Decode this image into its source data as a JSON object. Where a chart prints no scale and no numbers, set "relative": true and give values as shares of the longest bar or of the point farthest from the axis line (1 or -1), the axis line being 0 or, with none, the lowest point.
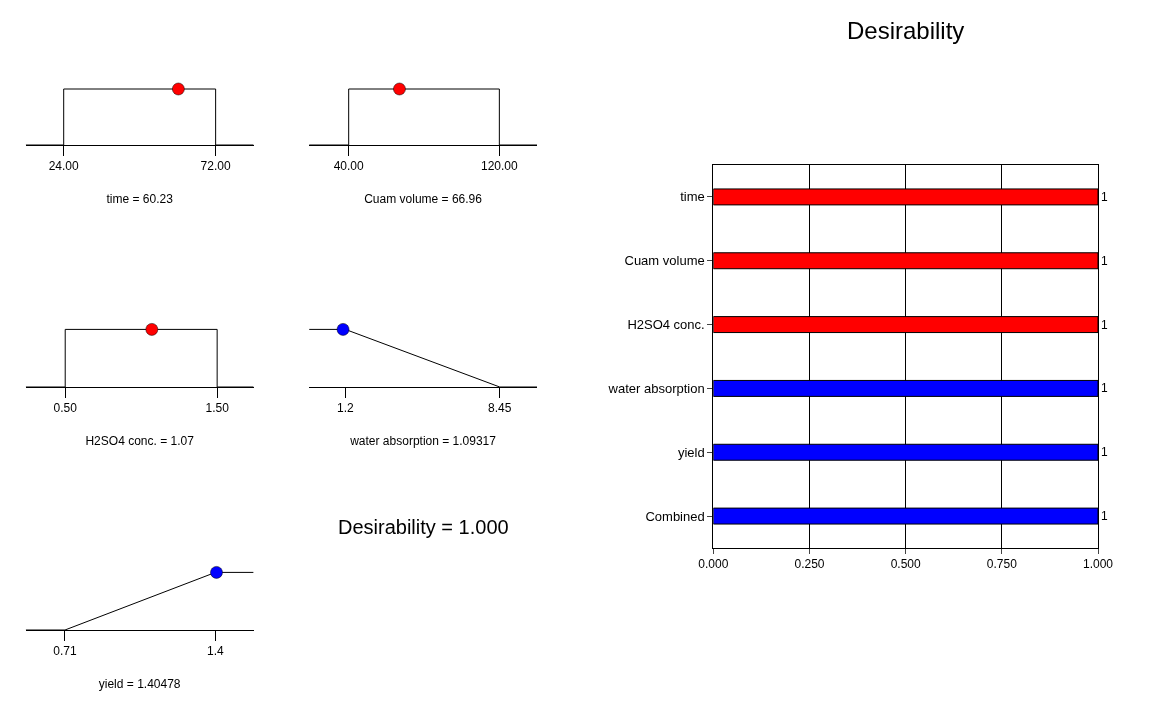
{
  "chart_data": [
    {
      "type": "line",
      "xlabel": "time = 60.23",
      "x": [
        12,
        24,
        24,
        72,
        72,
        84
      ],
      "relative": true,
      "xlim": [
        12,
        84
      ],
      "xticks": [
        {
          "value": 24,
          "label": "24.00"
        },
        {
          "value": 72,
          "label": "72.00"
        }
      ],
      "tick_labels": "x",
      "series": [
        {
          "color": "#000000",
          "values": [
            0,
            0,
            1,
            1,
            0,
            0
          ],
          "marker": "none"
        },
        {
          "type": "scatter",
          "x": [
            60.23
          ],
          "values": [
            1
          ],
          "color": "#ff0000",
          "marker": "circle"
        }
      ]
    },
    {
      "type": "line",
      "xlabel": "Cuam volume = 66.96",
      "x": [
        19,
        40,
        40,
        120,
        120,
        140
      ],
      "relative": true,
      "xlim": [
        19,
        140
      ],
      "xticks": [
        {
          "value": 40,
          "label": "40.00"
        },
        {
          "value": 120,
          "label": "120.00"
        }
      ],
      "tick_labels": "x",
      "series": [
        {
          "color": "#000000",
          "values": [
            0,
            0,
            1,
            1,
            0,
            0
          ],
          "marker": "none"
        },
        {
          "type": "scatter",
          "x": [
            66.96
          ],
          "values": [
            1
          ],
          "color": "#ff0000",
          "marker": "circle"
        }
      ]
    },
    {
      "type": "line",
      "xlabel": "H2SO4 conc. = 1.07",
      "x": [
        0.24,
        0.5,
        0.5,
        1.5,
        1.5,
        1.74
      ],
      "relative": true,
      "xlim": [
        0.24,
        1.74
      ],
      "xticks": [
        {
          "value": 0.5,
          "label": "0.50"
        },
        {
          "value": 1.5,
          "label": "1.50"
        }
      ],
      "tick_labels": "x",
      "series": [
        {
          "color": "#000000",
          "values": [
            0,
            0,
            1,
            1,
            0,
            0
          ],
          "marker": "none"
        },
        {
          "type": "scatter",
          "x": [
            1.07
          ],
          "values": [
            1
          ],
          "color": "#ff0000",
          "marker": "circle"
        }
      ]
    },
    {
      "type": "line",
      "xlabel": "water absorption = 1.09317",
      "x": [
        -0.5,
        1.2,
        8.45,
        10.2
      ],
      "relative": true,
      "xlim": [
        -0.5,
        10.2
      ],
      "xticks": [
        1.2,
        8.45
      ],
      "tick_labels": "x",
      "series": [
        {
          "color": "#000000",
          "values": [
            1,
            1,
            0,
            0
          ],
          "marker": "none"
        },
        {
          "type": "scatter",
          "x": [
            1.09317
          ],
          "values": [
            1
          ],
          "color": "#0000ff",
          "marker": "circle"
        }
      ]
    },
    {
      "type": "line",
      "xlabel": "yield = 1.40478",
      "x": [
        0.53,
        0.71,
        1.4,
        1.575
      ],
      "relative": true,
      "xlim": [
        0.53,
        1.575
      ],
      "xticks": [
        0.71,
        1.4
      ],
      "tick_labels": "x",
      "series": [
        {
          "color": "#000000",
          "values": [
            0,
            0,
            1,
            1
          ],
          "marker": "none"
        },
        {
          "type": "scatter",
          "x": [
            1.40478
          ],
          "values": [
            1
          ],
          "color": "#0000ff",
          "marker": "circle"
        }
      ]
    },
    {
      "type": "other",
      "annotations": [
        "Desirability = 1.000"
      ]
    },
    {
      "type": "bar",
      "title": "Desirability",
      "orientation": "horizontal",
      "categories": [
        "time",
        "Cuam volume",
        "H2SO4 conc.",
        "water absorption",
        "yield",
        "Combined"
      ],
      "values": [
        1,
        1,
        1,
        1,
        1,
        1
      ],
      "colors": [
        "#ff0000",
        "#ff0000",
        "#ff0000",
        "#0000ff",
        "#0000ff",
        "#0000ff"
      ],
      "xlim": [
        0,
        1
      ],
      "xticks": [
        {
          "value": 0,
          "label": "0.000"
        },
        {
          "value": 0.25,
          "label": "0.250"
        },
        {
          "value": 0.5,
          "label": "0.500"
        },
        {
          "value": 0.75,
          "label": "0.750"
        },
        {
          "value": 1,
          "label": "1.000"
        }
      ],
      "grid": "x",
      "data_labels": true
    }
  ]
}
